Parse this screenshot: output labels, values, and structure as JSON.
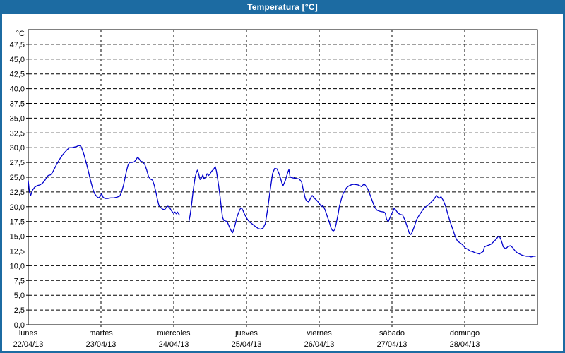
{
  "window": {
    "title": "Temperatura [°C]",
    "titlebar_color": "#1c6ba2",
    "border_color": "#1c6ba2",
    "background": "#ffffff"
  },
  "chart_data": {
    "type": "line",
    "title": "Temperatura [°C]",
    "unit_label": "°C",
    "line_color": "#0000cd",
    "grid_color": "#000000",
    "axis_color": "#000000",
    "grid": true,
    "legend_position": "none",
    "ylim": [
      0,
      50
    ],
    "ytick_step": 2.5,
    "x_hours_total": 168,
    "y_ticks": [
      {
        "v": 0,
        "label": "0,0"
      },
      {
        "v": 2.5,
        "label": "2,5"
      },
      {
        "v": 5,
        "label": "5,0"
      },
      {
        "v": 7.5,
        "label": "7,5"
      },
      {
        "v": 10,
        "label": "10,0"
      },
      {
        "v": 12.5,
        "label": "12,5"
      },
      {
        "v": 15,
        "label": "15,0"
      },
      {
        "v": 17.5,
        "label": "17,5"
      },
      {
        "v": 20,
        "label": "20,0"
      },
      {
        "v": 22.5,
        "label": "22,5"
      },
      {
        "v": 25,
        "label": "25,0"
      },
      {
        "v": 27.5,
        "label": "27,5"
      },
      {
        "v": 30,
        "label": "30,0"
      },
      {
        "v": 32.5,
        "label": "32,5"
      },
      {
        "v": 35,
        "label": "35,0"
      },
      {
        "v": 37.5,
        "label": "37,5"
      },
      {
        "v": 40,
        "label": "40,0"
      },
      {
        "v": 42.5,
        "label": "42,5"
      },
      {
        "v": 45,
        "label": "45,0"
      },
      {
        "v": 47.5,
        "label": "47,5"
      }
    ],
    "x_days": [
      {
        "name": "lunes",
        "date": "22/04/13"
      },
      {
        "name": "martes",
        "date": "23/04/13"
      },
      {
        "name": "miércoles",
        "date": "24/04/13"
      },
      {
        "name": "jueves",
        "date": "25/04/13"
      },
      {
        "name": "viernes",
        "date": "26/04/13"
      },
      {
        "name": "sábado",
        "date": "27/04/13"
      },
      {
        "name": "domingo",
        "date": "28/04/13"
      }
    ],
    "series": {
      "name": "Temperatura",
      "unit": "°C",
      "segments": [
        [
          [
            0,
            24.4
          ],
          [
            0.4,
            22.5
          ],
          [
            0.8,
            21.9
          ],
          [
            1.4,
            22.8
          ],
          [
            2.1,
            23.3
          ],
          [
            3,
            23.6
          ],
          [
            3.9,
            23.7
          ],
          [
            4.7,
            24.0
          ],
          [
            5.4,
            24.4
          ],
          [
            6,
            24.9
          ],
          [
            6.6,
            25.3
          ],
          [
            7.3,
            25.4
          ],
          [
            8,
            25.8
          ],
          [
            8.7,
            26.5
          ],
          [
            9.4,
            27.2
          ],
          [
            10.1,
            27.8
          ],
          [
            10.8,
            28.4
          ],
          [
            11.5,
            28.9
          ],
          [
            12.2,
            29.3
          ],
          [
            12.9,
            29.7
          ],
          [
            13.6,
            30.0
          ],
          [
            14.4,
            30.0
          ],
          [
            15.2,
            30.1
          ],
          [
            16,
            30.2
          ],
          [
            16.8,
            30.4
          ],
          [
            17.4,
            30.2
          ],
          [
            17.9,
            29.6
          ],
          [
            18.4,
            28.8
          ],
          [
            18.9,
            27.9
          ],
          [
            19.4,
            26.9
          ],
          [
            19.9,
            25.9
          ],
          [
            20.4,
            24.8
          ],
          [
            20.9,
            23.8
          ],
          [
            21.4,
            22.9
          ],
          [
            21.9,
            22.2
          ],
          [
            22.5,
            21.8
          ],
          [
            23.1,
            21.5
          ],
          [
            23.7,
            21.7
          ],
          [
            24.2,
            22.2
          ],
          [
            24.7,
            21.6
          ],
          [
            25.3,
            21.4
          ],
          [
            26.2,
            21.4
          ],
          [
            27.2,
            21.5
          ],
          [
            28.2,
            21.5
          ],
          [
            29.2,
            21.6
          ],
          [
            30.2,
            21.8
          ],
          [
            30.8,
            22.5
          ],
          [
            31.4,
            23.6
          ],
          [
            31.9,
            24.8
          ],
          [
            32.4,
            26.0
          ],
          [
            32.9,
            27.0
          ],
          [
            33.4,
            27.5
          ],
          [
            34.2,
            27.5
          ],
          [
            35,
            27.6
          ],
          [
            35.6,
            28.0
          ],
          [
            36.1,
            28.4
          ],
          [
            36.6,
            28.1
          ],
          [
            37.1,
            27.7
          ],
          [
            37.8,
            27.6
          ],
          [
            38.5,
            27.1
          ],
          [
            39.1,
            26.2
          ],
          [
            39.7,
            25.1
          ],
          [
            40.3,
            24.7
          ],
          [
            41,
            24.5
          ],
          [
            41.6,
            23.6
          ],
          [
            42.1,
            22.5
          ],
          [
            42.6,
            21.3
          ],
          [
            43.1,
            20.2
          ],
          [
            43.6,
            19.9
          ],
          [
            44.3,
            19.6
          ],
          [
            45,
            19.5
          ],
          [
            45.6,
            19.9
          ],
          [
            46.1,
            20.1
          ],
          [
            46.7,
            19.8
          ],
          [
            47.3,
            19.3
          ],
          [
            47.9,
            18.9
          ],
          [
            48.4,
            19.1
          ],
          [
            48.8,
            18.8
          ],
          [
            49.2,
            19.1
          ],
          [
            49.6,
            18.8
          ],
          [
            49.9,
            18.6
          ]
        ],
        [
          [
            53,
            17.5
          ],
          [
            53.4,
            18.6
          ],
          [
            53.8,
            20.0
          ],
          [
            54.2,
            21.8
          ],
          [
            54.6,
            23.4
          ],
          [
            55,
            24.8
          ],
          [
            55.4,
            25.7
          ],
          [
            55.8,
            26.2
          ],
          [
            56.2,
            25.6
          ],
          [
            56.7,
            24.6
          ],
          [
            57.2,
            24.9
          ],
          [
            57.6,
            25.4
          ],
          [
            58,
            24.7
          ],
          [
            58.5,
            25.0
          ],
          [
            59,
            25.6
          ],
          [
            59.5,
            25.3
          ],
          [
            60,
            25.6
          ],
          [
            60.5,
            26.0
          ],
          [
            61.1,
            26.3
          ],
          [
            61.7,
            26.8
          ],
          [
            62.1,
            26.0
          ],
          [
            62.5,
            24.7
          ],
          [
            62.9,
            23.3
          ],
          [
            63.3,
            21.6
          ],
          [
            63.7,
            19.8
          ],
          [
            64.1,
            18.2
          ],
          [
            64.5,
            17.7
          ],
          [
            65,
            17.6
          ],
          [
            65.6,
            17.5
          ],
          [
            66.1,
            16.9
          ],
          [
            66.6,
            16.3
          ],
          [
            67.1,
            15.8
          ],
          [
            67.4,
            15.6
          ],
          [
            67.9,
            16.3
          ],
          [
            68.4,
            17.3
          ],
          [
            68.9,
            18.3
          ],
          [
            69.4,
            19.0
          ],
          [
            69.9,
            19.6
          ],
          [
            70.4,
            19.8
          ],
          [
            70.9,
            19.3
          ],
          [
            71.4,
            18.7
          ],
          [
            71.9,
            18.2
          ],
          [
            72.4,
            17.8
          ],
          [
            73,
            17.4
          ],
          [
            73.6,
            17.2
          ],
          [
            74.8,
            16.7
          ],
          [
            75.9,
            16.3
          ],
          [
            76.7,
            16.2
          ],
          [
            77.5,
            16.4
          ],
          [
            78.2,
            17.1
          ],
          [
            79,
            19.6
          ],
          [
            79.8,
            22.8
          ],
          [
            80.6,
            25.6
          ],
          [
            81.3,
            26.5
          ],
          [
            82.1,
            26.4
          ],
          [
            82.9,
            25.4
          ],
          [
            83.7,
            24.0
          ],
          [
            84.1,
            23.6
          ],
          [
            84.8,
            24.4
          ],
          [
            85.6,
            25.8
          ],
          [
            86,
            26.3
          ],
          [
            86.4,
            25.0
          ],
          [
            87.1,
            24.9
          ],
          [
            88.3,
            24.8
          ],
          [
            89.4,
            24.7
          ],
          [
            90.2,
            24.2
          ],
          [
            90.6,
            23.2
          ],
          [
            91.4,
            21.4
          ],
          [
            91.8,
            21.0
          ],
          [
            92.5,
            20.8
          ],
          [
            93.3,
            21.6
          ],
          [
            93.7,
            21.9
          ],
          [
            94.5,
            21.4
          ],
          [
            95.3,
            21.0
          ],
          [
            96,
            20.6
          ],
          [
            96.7,
            20.0
          ],
          [
            97.2,
            20.2
          ],
          [
            97.9,
            19.5
          ],
          [
            98.3,
            18.9
          ],
          [
            98.7,
            18.3
          ],
          [
            99.1,
            17.7
          ],
          [
            99.5,
            17.1
          ],
          [
            99.9,
            16.4
          ],
          [
            100.3,
            16.0
          ],
          [
            100.7,
            15.9
          ],
          [
            101.1,
            16.1
          ],
          [
            101.5,
            16.9
          ],
          [
            101.9,
            17.9
          ],
          [
            102.3,
            18.9
          ],
          [
            102.6,
            19.9
          ],
          [
            103,
            20.7
          ],
          [
            103.4,
            21.5
          ],
          [
            103.8,
            22.1
          ],
          [
            104.2,
            22.5
          ],
          [
            105,
            23.2
          ],
          [
            105.7,
            23.5
          ],
          [
            106.5,
            23.7
          ],
          [
            107.3,
            23.8
          ],
          [
            108.8,
            23.7
          ],
          [
            109.6,
            23.5
          ],
          [
            110,
            23.4
          ],
          [
            110.8,
            23.9
          ],
          [
            111.6,
            23.4
          ],
          [
            112.3,
            22.7
          ],
          [
            112.7,
            22.1
          ],
          [
            113.5,
            21.0
          ],
          [
            114.3,
            19.9
          ],
          [
            115.1,
            19.4
          ],
          [
            116.2,
            19.2
          ],
          [
            117.4,
            19.1
          ],
          [
            117.8,
            18.9
          ],
          [
            118.2,
            17.9
          ],
          [
            118.6,
            17.6
          ],
          [
            118.8,
            17.5
          ],
          [
            119.3,
            18.1
          ],
          [
            120,
            18.9
          ],
          [
            120.7,
            19.7
          ],
          [
            121.2,
            19.5
          ],
          [
            122,
            18.9
          ],
          [
            122.8,
            18.7
          ],
          [
            123.5,
            18.6
          ],
          [
            124.3,
            17.7
          ],
          [
            125.1,
            16.5
          ],
          [
            125.8,
            15.4
          ],
          [
            126.2,
            15.3
          ],
          [
            126.6,
            15.6
          ],
          [
            127.4,
            16.7
          ],
          [
            128.1,
            17.8
          ],
          [
            128.9,
            18.5
          ],
          [
            129.7,
            19.1
          ],
          [
            130.5,
            19.7
          ],
          [
            131.2,
            20.0
          ],
          [
            132,
            20.3
          ],
          [
            132.8,
            20.7
          ],
          [
            133.9,
            21.3
          ],
          [
            134.7,
            21.9
          ],
          [
            135.5,
            21.4
          ],
          [
            136.2,
            21.7
          ],
          [
            137,
            21.0
          ],
          [
            137.8,
            19.9
          ],
          [
            138.5,
            18.6
          ],
          [
            139.3,
            17.3
          ],
          [
            140.1,
            16.1
          ],
          [
            140.9,
            14.9
          ],
          [
            141.6,
            14.2
          ],
          [
            142.4,
            13.9
          ],
          [
            143.2,
            13.6
          ],
          [
            144.2,
            13.0
          ],
          [
            145,
            12.8
          ],
          [
            145.8,
            12.5
          ],
          [
            146.6,
            12.4
          ],
          [
            147.4,
            12.2
          ],
          [
            148.1,
            12.1
          ],
          [
            148.9,
            12.0
          ],
          [
            149.7,
            12.3
          ],
          [
            150.1,
            12.4
          ],
          [
            150.5,
            13.2
          ],
          [
            151.3,
            13.4
          ],
          [
            152,
            13.5
          ],
          [
            152.8,
            13.7
          ],
          [
            153.6,
            14.1
          ],
          [
            154.4,
            14.5
          ],
          [
            155.1,
            15.0
          ],
          [
            155.5,
            14.9
          ],
          [
            155.9,
            14.5
          ],
          [
            156.3,
            13.9
          ],
          [
            156.7,
            13.2
          ],
          [
            157.5,
            12.9
          ],
          [
            158.2,
            13.2
          ],
          [
            159,
            13.4
          ],
          [
            159.8,
            13.1
          ],
          [
            160.5,
            12.6
          ],
          [
            161.3,
            12.2
          ],
          [
            162.1,
            12.0
          ],
          [
            162.9,
            11.8
          ],
          [
            163.6,
            11.7
          ],
          [
            164.4,
            11.6
          ],
          [
            165.2,
            11.6
          ],
          [
            165.9,
            11.5
          ],
          [
            166.7,
            11.6
          ],
          [
            167.3,
            11.6
          ]
        ]
      ]
    }
  }
}
